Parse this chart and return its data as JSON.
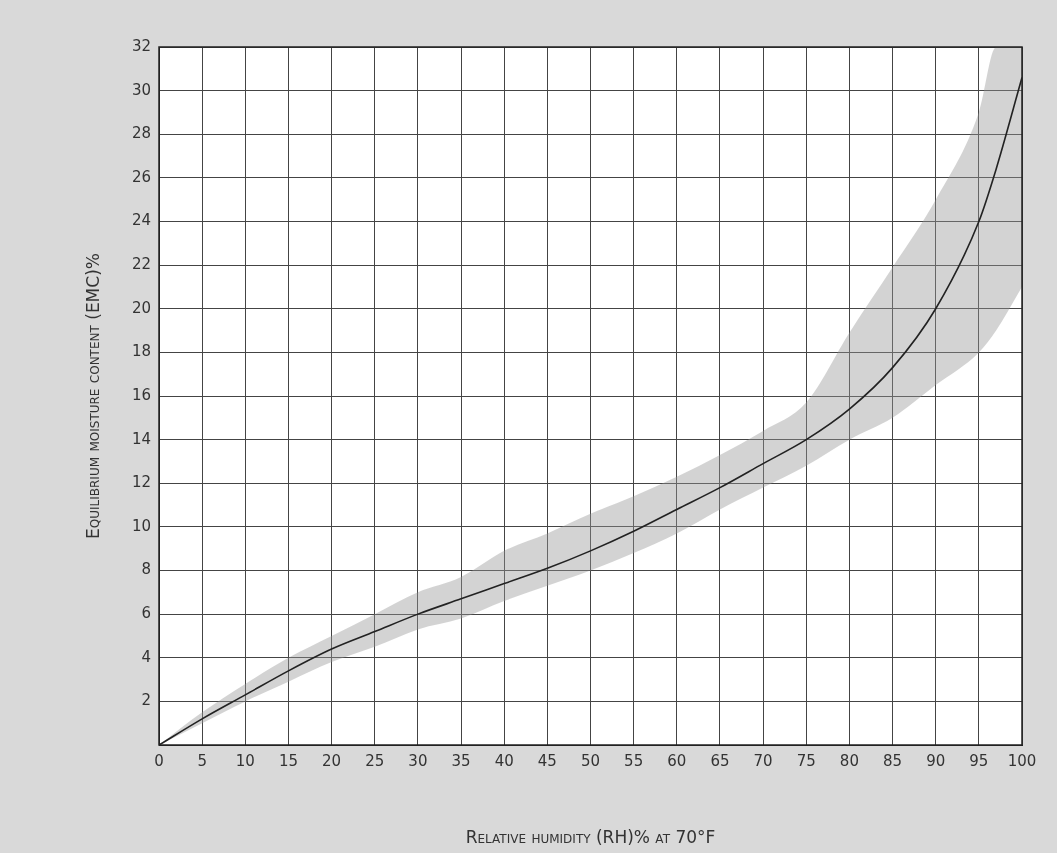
{
  "chart_data": {
    "type": "line",
    "xlabel": "Relative humidity (RH)% at 70°F",
    "ylabel": "Equilibrium moisture content (EMC)%",
    "x": [
      0,
      5,
      10,
      15,
      20,
      25,
      30,
      35,
      40,
      45,
      50,
      55,
      60,
      65,
      70,
      75,
      80,
      85,
      90,
      95,
      97,
      100
    ],
    "series": [
      {
        "color": "#222222",
        "values": [
          0,
          1.2,
          2.3,
          3.4,
          4.4,
          5.2,
          6,
          6.7,
          7.4,
          8.1,
          8.9,
          9.8,
          10.8,
          11.8,
          12.9,
          14,
          15.4,
          17.3,
          20,
          24,
          26.4,
          30.6
        ],
        "lower": [
          0,
          1.0,
          2.0,
          2.9,
          3.8,
          4.5,
          5.3,
          5.8,
          6.6,
          7.3,
          8.0,
          8.8,
          9.7,
          10.8,
          11.8,
          12.8,
          14.0,
          15.0,
          16.5,
          18.0,
          19.0,
          21.0
        ],
        "upper": [
          0,
          1.5,
          2.8,
          4.0,
          5.0,
          6.0,
          7.0,
          7.7,
          8.9,
          9.7,
          10.6,
          11.4,
          12.3,
          13.3,
          14.4,
          15.7,
          18.9,
          21.9,
          25.0,
          29.0,
          32,
          32
        ]
      }
    ],
    "xlim": [
      0,
      100
    ],
    "xticks": [
      0,
      5,
      10,
      15,
      20,
      25,
      30,
      35,
      40,
      45,
      50,
      55,
      60,
      65,
      70,
      75,
      80,
      85,
      90,
      95,
      100
    ],
    "ylim": [
      0,
      32
    ],
    "yticks": [
      2,
      4,
      6,
      8,
      10,
      12,
      14,
      16,
      18,
      20,
      22,
      24,
      26,
      28,
      30,
      32
    ],
    "grid": true,
    "legend": false,
    "marker": "none",
    "line_style": "solid"
  }
}
